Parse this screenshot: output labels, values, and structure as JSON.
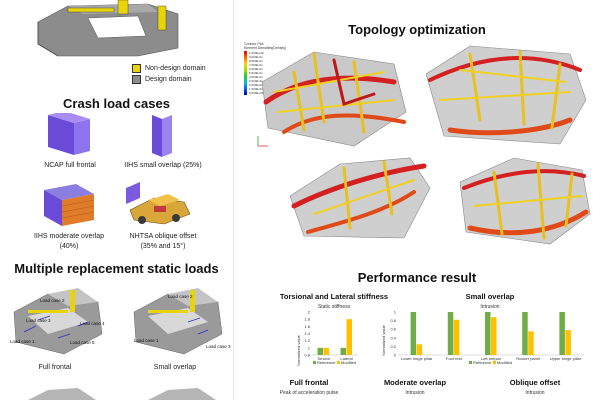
{
  "colors": {
    "bar_reference": "#70ad47",
    "bar_modified": "#ffc000",
    "non_design": "#e8d40a",
    "design": "#8c8c8c"
  },
  "left": {
    "legend": {
      "non_design": "Non-design domain",
      "design": "Design domain"
    },
    "crash_title": "Crash load cases",
    "crash_cases": [
      {
        "label": "NCAP full frontal",
        "icon": "frontal-barrier-icon"
      },
      {
        "label": "IIHS small overlap (25%)",
        "icon": "small-overlap-barrier-icon"
      },
      {
        "label": "IIHS moderate overlap\n(40%)",
        "icon": "moderate-overlap-barrier-icon"
      },
      {
        "label": "NHTSA oblique offset\n(35% and 15°)",
        "icon": "oblique-offset-vehicle-icon"
      }
    ],
    "static_title": "Multiple replacement static loads",
    "static_cases": [
      {
        "label": "Full frontal",
        "load_cases": [
          "Load case 1",
          "Load case 2",
          "Load case 3",
          "Load case 4",
          "Load case 5"
        ]
      },
      {
        "label": "Small overlap",
        "load_cases": [
          "Load case 1",
          "Load case 2",
          "Load case 3"
        ]
      }
    ]
  },
  "right": {
    "topology_title": "Topology optimization",
    "contour_legend": {
      "title": "Contour Plot",
      "subtitle": "Element Densities(Density)",
      "values": [
        "1.000E+00",
        "9.000E-01",
        "8.000E-01",
        "7.000E-01",
        "6.000E-01",
        "5.000E-01",
        "4.000E-01",
        "3.000E-01",
        "2.000E-01",
        "1.000E-01",
        "0.000E+00"
      ]
    },
    "performance_title": "Performance result",
    "torsion_chart": {
      "title": "Torsional and Lateral stiffness",
      "subtitle": "Static stiffness",
      "ylabel": "Normalized value"
    },
    "overlap_chart": {
      "title": "Small overlap",
      "subtitle": "Intrusion",
      "ylabel": "Normalized value"
    },
    "bottom_titles": {
      "full_frontal": "Full frontal",
      "full_frontal_sub": "Peak of acceleration pulse",
      "moderate": "Moderate overlap",
      "moderate_sub": "Intrusion",
      "oblique": "Oblique offset",
      "oblique_sub": "Intrusion"
    }
  },
  "chart_data": [
    {
      "type": "bar",
      "title": "Torsional and Lateral stiffness",
      "subtitle": "Static stiffness",
      "ylabel": "Normalized value",
      "categories": [
        "Torsion",
        "Lateral"
      ],
      "series": [
        {
          "name": "Reference",
          "values": [
            1.0,
            1.0
          ]
        },
        {
          "name": "Modified",
          "values": [
            1.0,
            1.8
          ]
        }
      ],
      "ylim": [
        0.8,
        2.0
      ],
      "yticks": [
        "0.8",
        "1",
        "1.2",
        "1.4",
        "1.6",
        "1.8",
        "2"
      ],
      "legend": "bottom"
    },
    {
      "type": "bar",
      "title": "Small overlap",
      "subtitle": "Intrusion",
      "ylabel": "Normalized value",
      "categories": [
        "Lower hinge pillar",
        "Foot rest",
        "Left toepan",
        "Rocker panel",
        "Upper hinge pillar"
      ],
      "series": [
        {
          "name": "Reference",
          "values": [
            1,
            1,
            1,
            1,
            1
          ]
        },
        {
          "name": "Modified",
          "values": [
            0.25,
            0.82,
            0.88,
            0.55,
            0.58
          ]
        }
      ],
      "ylim": [
        0,
        1
      ],
      "yticks": [
        "0",
        "0.2",
        "0.4",
        "0.6",
        "0.8",
        "1"
      ],
      "legend": "bottom"
    }
  ]
}
